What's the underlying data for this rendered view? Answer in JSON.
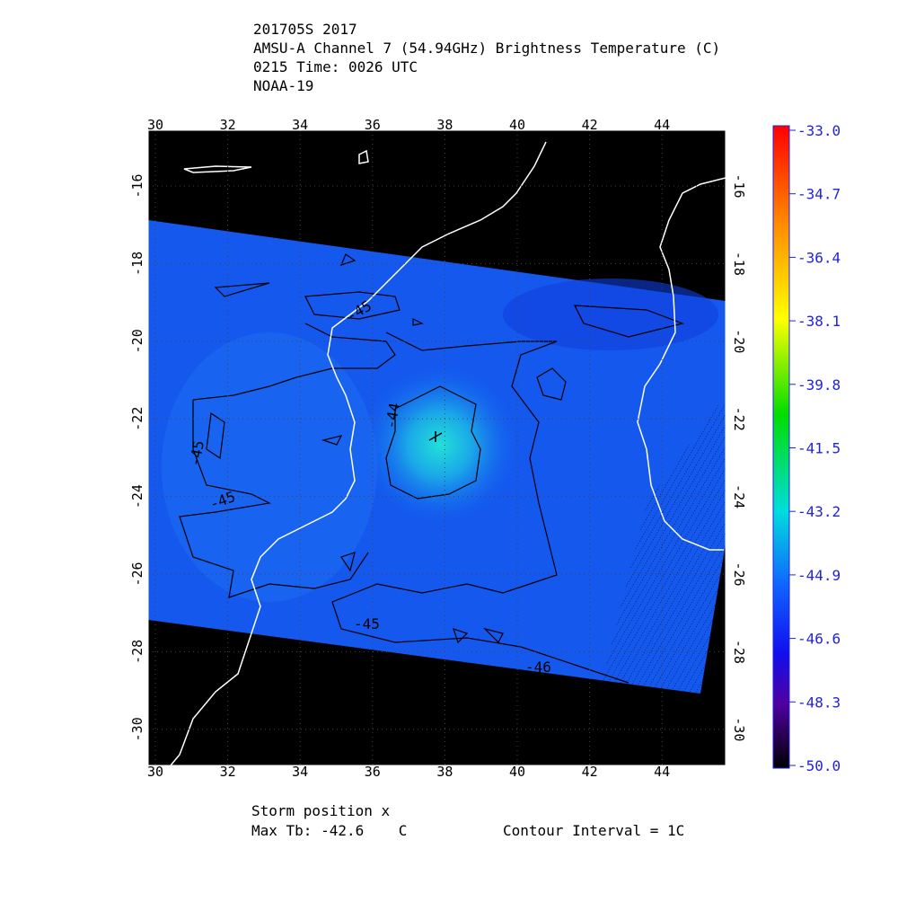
{
  "header": {
    "lines": [
      "201705S 2017",
      "AMSU-A Channel 7 (54.94GHz) Brightness Temperature (C)",
      "0215 Time: 0026 UTC",
      "NOAA-19"
    ]
  },
  "map": {
    "lon_ticks": [
      30,
      32,
      34,
      36,
      38,
      40,
      42,
      44
    ],
    "lat_ticks": [
      -16,
      -18,
      -20,
      -22,
      -24,
      -26,
      -28,
      -30
    ],
    "contour_labels": [
      "-45",
      "-44",
      "-45",
      "-45",
      "-45",
      "-46"
    ]
  },
  "colorbar": {
    "labels": [
      "-33.0",
      "-34.7",
      "-36.4",
      "-38.1",
      "-39.8",
      "-41.5",
      "-43.2",
      "-44.9",
      "-46.6",
      "-48.3",
      "-50.0"
    ]
  },
  "footer": {
    "storm": "Storm position x",
    "max_tb": "Max Tb: -42.6    C",
    "interval": "Contour Interval = 1C"
  }
}
